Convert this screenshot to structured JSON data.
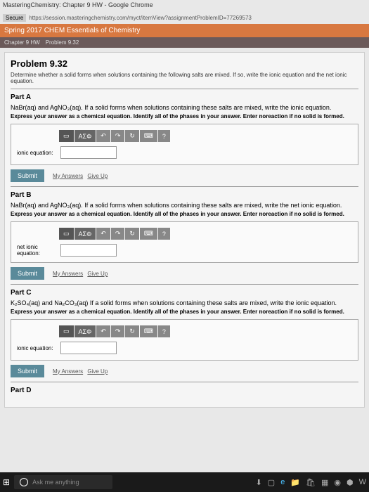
{
  "browser": {
    "title": "MasteringChemistry: Chapter 9 HW - Google Chrome",
    "secure": "Secure",
    "url": "https://session.masteringchemistry.com/myct/itemView?assignmentProblemID=77269573"
  },
  "course": {
    "title": "Spring 2017 CHEM Essentials of Chemistry"
  },
  "nav": {
    "chapter": "Chapter 9 HW",
    "problem": "Problem 9.32"
  },
  "problem": {
    "title": "Problem 9.32",
    "desc": "Determine whether a solid forms when solutions containing the following salts are mixed. If so, write the ionic equation and the net ionic equation."
  },
  "partA": {
    "label": "Part A",
    "chem": "NaBr(aq) and AgNO₃(aq). If a solid forms when solutions containing these salts are mixed, write the ionic equation.",
    "instr": "Express your answer as a chemical equation. Identify all of the phases in your answer. Enter noreaction if no solid is formed.",
    "inputLabel": "ionic equation:"
  },
  "partB": {
    "label": "Part B",
    "chem": "NaBr(aq) and AgNO₃(aq). If a solid forms when solutions containing these salts are mixed, write the net ionic equation.",
    "instr": "Express your answer as a chemical equation. Identify all of the phases in your answer. Enter noreaction if no solid is formed.",
    "inputLabel": "net ionic equation:"
  },
  "partC": {
    "label": "Part C",
    "chem": "K₂SO₄(aq) and Na₂CO₃(aq) If a solid forms when solutions containing these salts are mixed, write the ionic equation.",
    "instr": "Express your answer as a chemical equation. Identify all of the phases in your answer. Enter noreaction if no solid is formed.",
    "inputLabel": "ionic equation:"
  },
  "partD": {
    "label": "Part D"
  },
  "toolbar": {
    "sigma": "ΑΣΦ",
    "undo": "↶",
    "redo": "↷",
    "reset": "↻",
    "kb": "⌨",
    "help": "?"
  },
  "buttons": {
    "submit": "Submit",
    "myAnswers": "My Answers",
    "giveUp": "Give Up"
  },
  "taskbar": {
    "search": "Ask me anything"
  }
}
